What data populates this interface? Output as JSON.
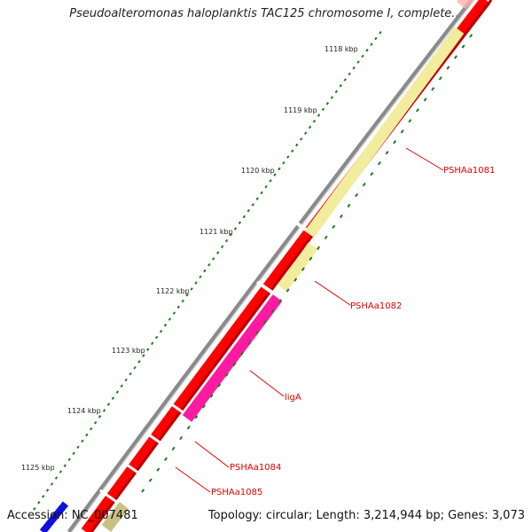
{
  "title": "Pseudoalteromonas haloplanktis TAC125 chromosome I, complete...",
  "footer": {
    "accession": "Accession: NC_007481",
    "summary": "Topology: circular; Length: 3,214,944 bp; Genes: 3,073"
  },
  "ticks": [
    "1118 kbp",
    "1119 kbp",
    "1120 kbp",
    "1121 kbp",
    "1122 kbp",
    "1123 kbp",
    "1124 kbp",
    "1125 kbp"
  ],
  "gene_labels": [
    "PSHAa1081",
    "PSHAa1082",
    "ligA",
    "PSHAa1084",
    "PSHAa1085"
  ],
  "colors": {
    "backbone": "#8a8a8a",
    "cds_forward": "#ff0000",
    "cds_reverse_pale": "#f2ec9e",
    "ligA": "#ff1aa0",
    "tick": "#1e7a1e",
    "label": "#e00000",
    "start_blue": "#1010e0"
  }
}
